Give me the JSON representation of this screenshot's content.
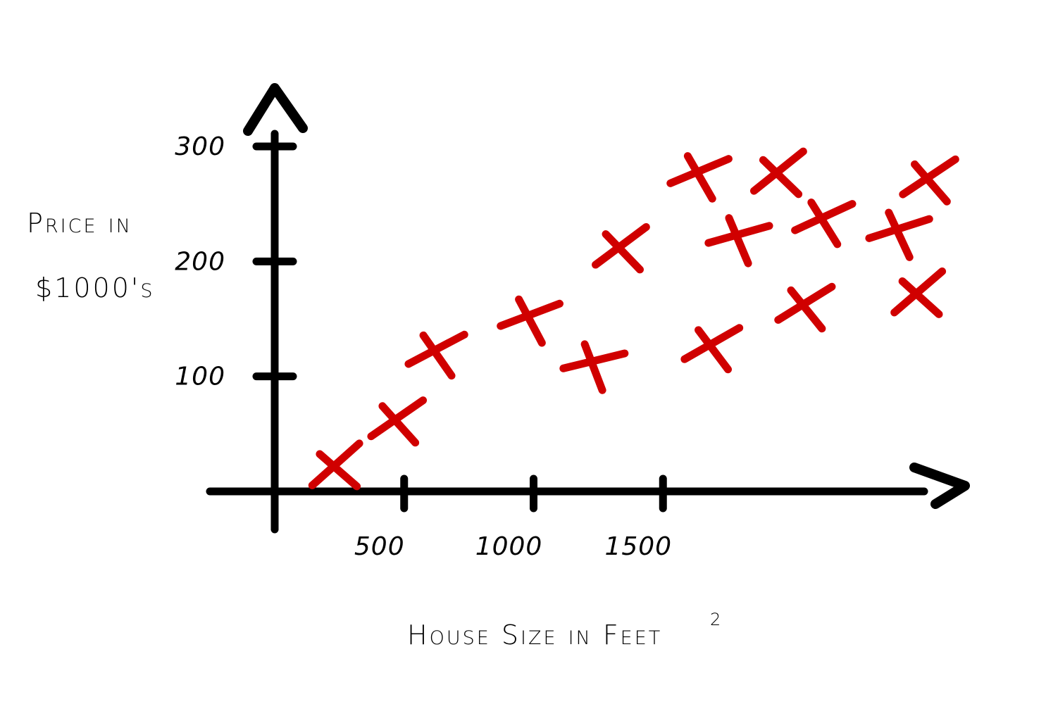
{
  "colors": {
    "axis": "#000000",
    "marker": "#d00000",
    "background": "#ffffff"
  },
  "chart_data": {
    "type": "scatter",
    "marker": "x",
    "xlabel": "House Size in Feet",
    "xlabel_superscript": "2",
    "ylabel_line1": "Price in",
    "ylabel_line2": "$1000's",
    "x_ticks": [
      500,
      1000,
      1500
    ],
    "x_tick_labels": [
      "500",
      "1000",
      "1500"
    ],
    "y_ticks": [
      100,
      200,
      300
    ],
    "y_tick_labels": [
      "100",
      "200",
      "300"
    ],
    "xlim": [
      0,
      2500
    ],
    "ylim": [
      0,
      350
    ],
    "grid": false,
    "legend": "none",
    "points": [
      {
        "x": 240,
        "y": 20
      },
      {
        "x": 475,
        "y": 60
      },
      {
        "x": 625,
        "y": 120
      },
      {
        "x": 985,
        "y": 150
      },
      {
        "x": 1230,
        "y": 110
      },
      {
        "x": 1340,
        "y": 210
      },
      {
        "x": 1690,
        "y": 125
      },
      {
        "x": 1640,
        "y": 275
      },
      {
        "x": 1790,
        "y": 220
      },
      {
        "x": 1950,
        "y": 275
      },
      {
        "x": 2050,
        "y": 160
      },
      {
        "x": 2120,
        "y": 235
      },
      {
        "x": 2410,
        "y": 225
      },
      {
        "x": 2490,
        "y": 170
      },
      {
        "x": 2530,
        "y": 270
      }
    ]
  }
}
